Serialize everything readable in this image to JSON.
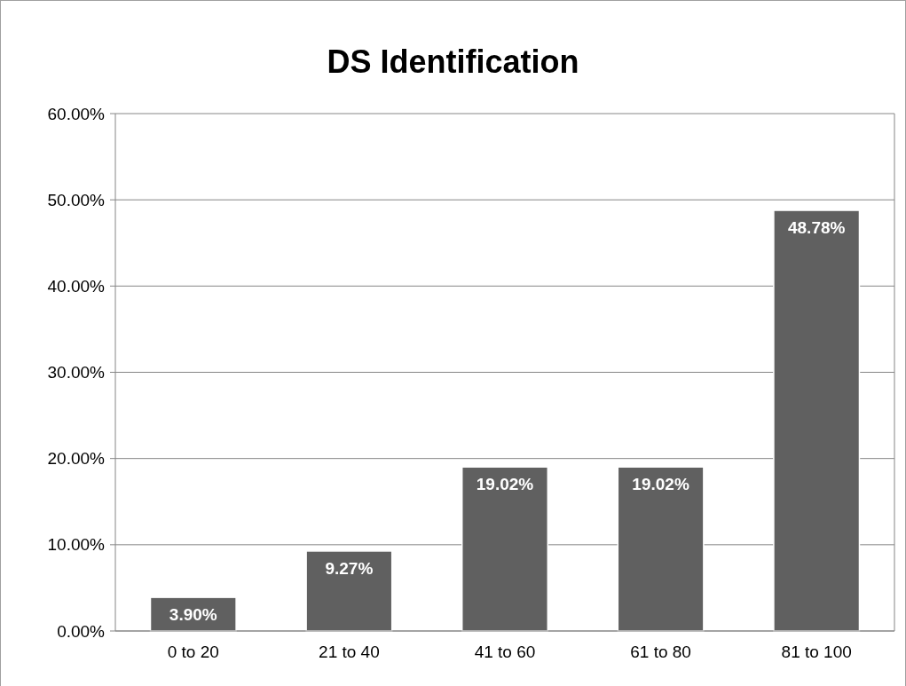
{
  "chart_data": {
    "type": "bar",
    "title": "DS Identification",
    "categories": [
      "0 to 20",
      "21 to 40",
      "41 to 60",
      "61 to 80",
      "81 to 100"
    ],
    "values": [
      3.9,
      9.27,
      19.02,
      19.02,
      48.78
    ],
    "value_labels": [
      "3.90%",
      "9.27%",
      "19.02%",
      "19.02%",
      "48.78%"
    ],
    "color": "#606060",
    "ylim": [
      0,
      60
    ],
    "yticks": [
      {
        "value": 0,
        "label": "0.00%"
      },
      {
        "value": 10,
        "label": "10.00%"
      },
      {
        "value": 20,
        "label": "20.00%"
      },
      {
        "value": 30,
        "label": "30.00%"
      },
      {
        "value": 40,
        "label": "40.00%"
      },
      {
        "value": 50,
        "label": "50.00%"
      },
      {
        "value": 60,
        "label": "60.00%"
      }
    ],
    "grid": "y"
  }
}
